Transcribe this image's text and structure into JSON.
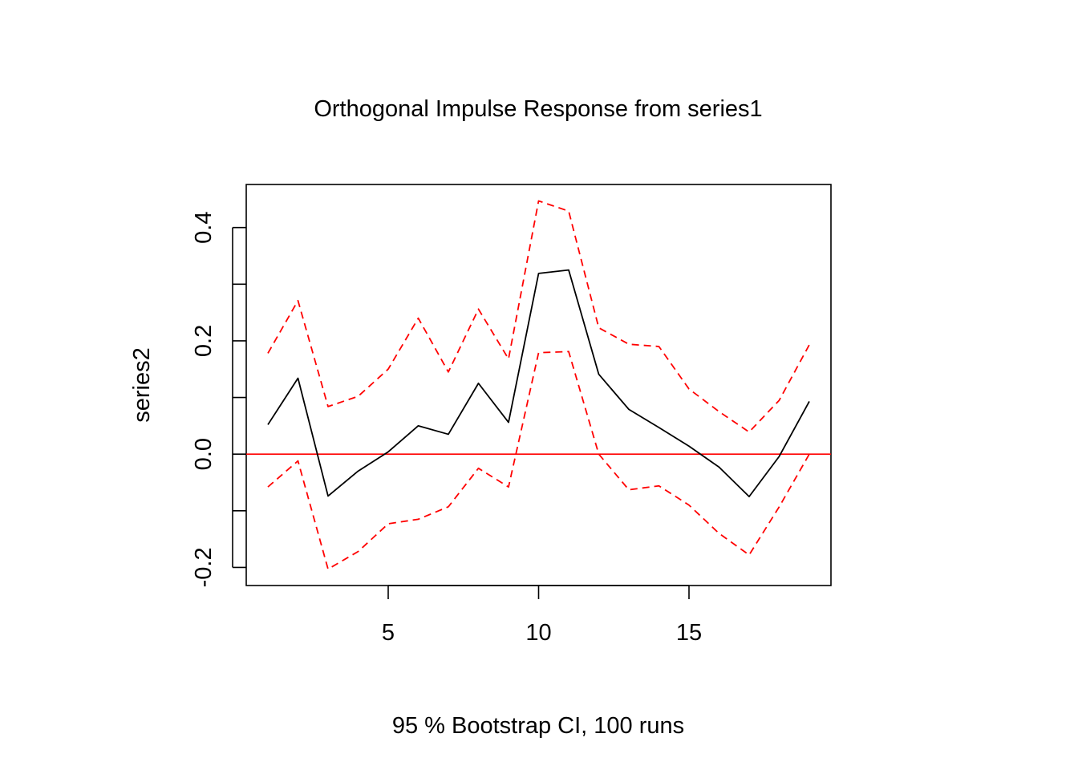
{
  "chart_data": {
    "type": "line",
    "title": "Orthogonal Impulse Response from series1",
    "xlabel": "95 % Bootstrap CI,  100 runs",
    "ylabel": "series2",
    "xlim": [
      0.28,
      19.72
    ],
    "ylim": [
      -0.232,
      0.476
    ],
    "x_ticks": [
      5,
      10,
      15
    ],
    "y_ticks": [
      -0.2,
      -0.1,
      0.0,
      0.1,
      0.2,
      0.3,
      0.4
    ],
    "y_tick_labels": [
      {
        "value": -0.2,
        "label": "-0.2"
      },
      {
        "value": 0.0,
        "label": "0.0"
      },
      {
        "value": 0.2,
        "label": "0.2"
      },
      {
        "value": 0.4,
        "label": "0.4"
      }
    ],
    "x": [
      1,
      2,
      3,
      4,
      5,
      6,
      7,
      8,
      9,
      10,
      11,
      12,
      13,
      14,
      15,
      16,
      17,
      18,
      19
    ],
    "series": [
      {
        "role": "response",
        "color": "#000000",
        "dash": "solid",
        "values": [
          0.052,
          0.134,
          -0.074,
          -0.03,
          0.004,
          0.05,
          0.035,
          0.125,
          0.056,
          0.319,
          0.325,
          0.141,
          0.079,
          0.047,
          0.014,
          -0.023,
          -0.075,
          -0.004,
          0.093
        ]
      },
      {
        "role": "upper",
        "color": "#ff0000",
        "dash": "dashed",
        "values": [
          0.178,
          0.271,
          0.084,
          0.102,
          0.15,
          0.24,
          0.145,
          0.256,
          0.168,
          0.447,
          0.429,
          0.223,
          0.194,
          0.19,
          0.115,
          0.075,
          0.039,
          0.095,
          0.193
        ]
      },
      {
        "role": "lower",
        "color": "#ff0000",
        "dash": "dashed",
        "values": [
          -0.058,
          -0.012,
          -0.203,
          -0.172,
          -0.123,
          -0.115,
          -0.093,
          -0.025,
          -0.058,
          0.179,
          0.181,
          0.0,
          -0.063,
          -0.056,
          -0.09,
          -0.14,
          -0.178,
          -0.093,
          0.0
        ]
      }
    ],
    "hline": {
      "y": 0.0,
      "color": "#ff0000"
    }
  }
}
